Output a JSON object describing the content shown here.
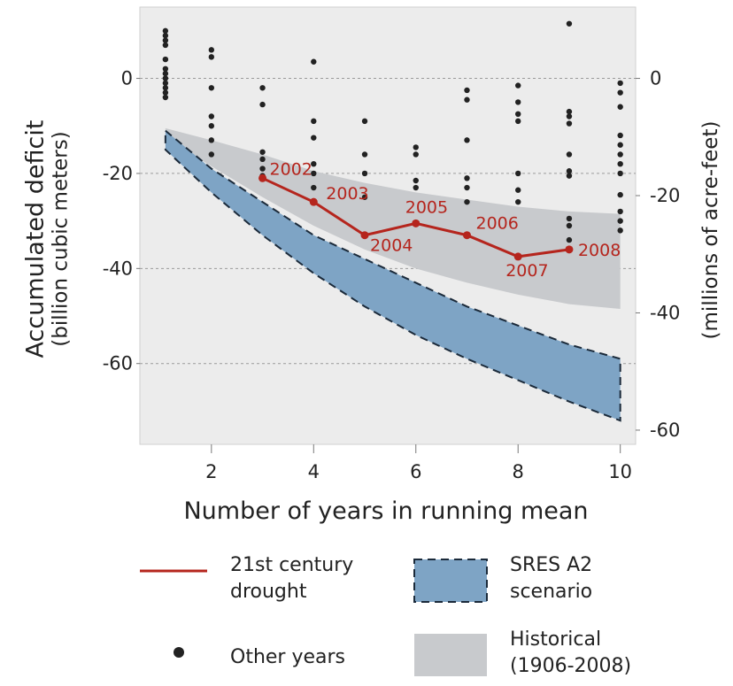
{
  "chart_data": {
    "type": "scatter",
    "xlabel": "Number of years in running mean",
    "ylabel_line1": "Accumulated deficit",
    "ylabel_line2": "(billion cubic meters)",
    "ylabel_right": "(millions of acre-feet)",
    "xlim": [
      0.6,
      10.3
    ],
    "ylim": [
      -77,
      15
    ],
    "x_ticks": [
      2,
      4,
      6,
      8,
      10
    ],
    "y_ticks": [
      0,
      -20,
      -40,
      -60
    ],
    "y_ticks_right": [
      0,
      -20,
      -40,
      -60
    ],
    "right_axis_scale_maf_per_bcm": 0.8107,
    "grid_y": true,
    "series": [
      {
        "name": "Other years",
        "kind": "points",
        "points": [
          [
            1.1,
            10
          ],
          [
            1.1,
            9
          ],
          [
            1.1,
            8
          ],
          [
            1.1,
            7
          ],
          [
            1.1,
            4
          ],
          [
            1.1,
            2
          ],
          [
            1.1,
            1
          ],
          [
            1.1,
            0
          ],
          [
            1.1,
            -1
          ],
          [
            1.1,
            -2
          ],
          [
            1.1,
            -3
          ],
          [
            1.1,
            -4
          ],
          [
            2,
            6
          ],
          [
            2,
            4.5
          ],
          [
            2,
            -2
          ],
          [
            2,
            -8
          ],
          [
            2,
            -10
          ],
          [
            2,
            -13
          ],
          [
            2,
            -16
          ],
          [
            3,
            -2
          ],
          [
            3,
            -5.5
          ],
          [
            3,
            -15.5
          ],
          [
            3,
            -17
          ],
          [
            3,
            -19
          ],
          [
            3,
            -20.5
          ],
          [
            4,
            3.5
          ],
          [
            4,
            -9
          ],
          [
            4,
            -12.5
          ],
          [
            4,
            -18
          ],
          [
            4,
            -20
          ],
          [
            4,
            -23
          ],
          [
            5,
            -9
          ],
          [
            5,
            -16
          ],
          [
            5,
            -20
          ],
          [
            5,
            -25
          ],
          [
            6,
            -14.5
          ],
          [
            6,
            -16
          ],
          [
            6,
            -21.5
          ],
          [
            6,
            -23
          ],
          [
            7,
            -2.5
          ],
          [
            7,
            -4.5
          ],
          [
            7,
            -13
          ],
          [
            7,
            -21
          ],
          [
            7,
            -23
          ],
          [
            7,
            -26
          ],
          [
            8,
            -1.5
          ],
          [
            8,
            -5
          ],
          [
            8,
            -7.5
          ],
          [
            8,
            -9
          ],
          [
            8,
            -20
          ],
          [
            8,
            -23.5
          ],
          [
            8,
            -26
          ],
          [
            9,
            11.5
          ],
          [
            9,
            -7
          ],
          [
            9,
            -8
          ],
          [
            9,
            -9.5
          ],
          [
            9,
            -16
          ],
          [
            9,
            -19.5
          ],
          [
            9,
            -20.5
          ],
          [
            9,
            -29.5
          ],
          [
            9,
            -31
          ],
          [
            9,
            -34
          ],
          [
            10,
            -1
          ],
          [
            10,
            -3
          ],
          [
            10,
            -6
          ],
          [
            10,
            -12
          ],
          [
            10,
            -14
          ],
          [
            10,
            -16
          ],
          [
            10,
            -18
          ],
          [
            10,
            -20
          ],
          [
            10,
            -24.5
          ],
          [
            10,
            -28
          ],
          [
            10,
            -30
          ],
          [
            10,
            -32
          ]
        ]
      },
      {
        "name": "21st century drought",
        "kind": "line",
        "color": "#b5251d",
        "points": [
          [
            3,
            -21
          ],
          [
            4,
            -26
          ],
          [
            5,
            -33
          ],
          [
            6,
            -30.5
          ],
          [
            7,
            -33
          ],
          [
            8,
            -37.5
          ],
          [
            9,
            -36
          ]
        ],
        "labels": [
          "2002",
          "2003",
          "2004",
          "2005",
          "2006",
          "2007",
          "2008"
        ]
      },
      {
        "name": "Historical (1906-2008)",
        "kind": "band",
        "color": "#c8cacd",
        "x": [
          1.1,
          2,
          3,
          4,
          5,
          6,
          7,
          8,
          9,
          10
        ],
        "upper": [
          -10.5,
          -13,
          -16,
          -19.5,
          -22,
          -24,
          -25.5,
          -27,
          -28,
          -28.5
        ],
        "lower": [
          -12.5,
          -18.5,
          -25,
          -31,
          -36,
          -40,
          -43,
          -45.5,
          -47.5,
          -48.5
        ]
      },
      {
        "name": "SRES A2 scenario",
        "kind": "band",
        "color": "#7ea4c5",
        "x": [
          1.1,
          2,
          3,
          4,
          5,
          6,
          7,
          8,
          9,
          10
        ],
        "upper": [
          -11,
          -19,
          -26,
          -33,
          -38,
          -43,
          -48,
          -52,
          -56,
          -59
        ],
        "lower": [
          -15,
          -24,
          -33,
          -41,
          -48,
          -54,
          -59,
          -63.5,
          -68,
          -72
        ]
      }
    ]
  },
  "legend": {
    "drought_line1": "21st century",
    "drought_line2": "drought",
    "sres_line1": "SRES A2",
    "sres_line2": "scenario",
    "other": "Other years",
    "hist_line1": "Historical",
    "hist_line2": "(1906-2008)"
  },
  "colors": {
    "plot_bg": "#ececec",
    "drought": "#b5251d",
    "sres_fill": "#7ea4c5",
    "sres_stroke": "#1b2a3a",
    "hist_fill": "#c8cacd",
    "points": "#222222"
  }
}
